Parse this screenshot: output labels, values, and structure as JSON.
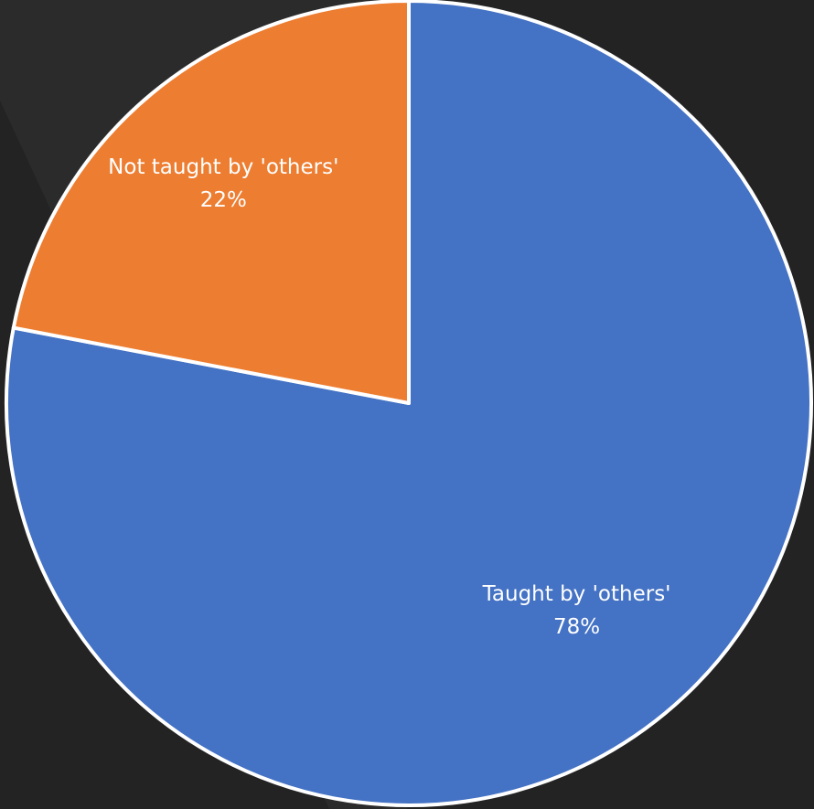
{
  "colors": {
    "background": "#232323",
    "background_band": "#2b2b2b",
    "taught": "#4472C4",
    "not_taught": "#ED7D31",
    "slice_border": "#ffffff",
    "label_text": "#ffffff"
  },
  "chart_data": {
    "type": "pie",
    "start_angle": "12 o'clock",
    "direction": "clockwise",
    "slices": [
      {
        "label": "Taught by 'others'",
        "value": 78,
        "value_label": "78%",
        "color": "#4472C4"
      },
      {
        "label": "Not taught by 'others'",
        "value": 22,
        "value_label": "22%",
        "color": "#ED7D31"
      }
    ]
  }
}
